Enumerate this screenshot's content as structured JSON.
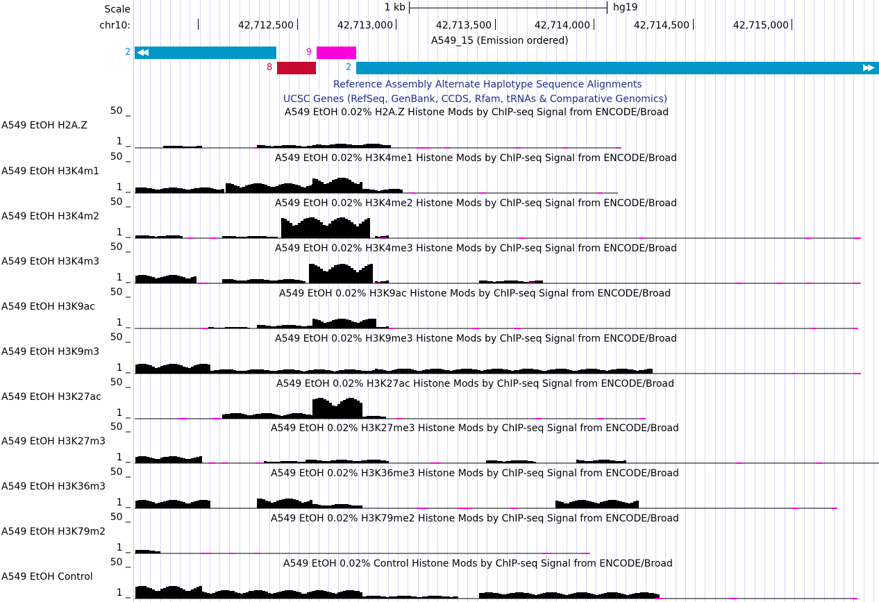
{
  "ruler": {
    "scale_label": "Scale",
    "chrom_label": "chr10:",
    "scalebar_label": "1 kb",
    "assembly": "hg19",
    "positions": [
      "42,712,500",
      "42,713,000",
      "42,713,500",
      "42,714,000",
      "42,714,500",
      "42,715,000"
    ]
  },
  "chromhmm": {
    "title": "A549_15 (Emission ordered)",
    "states": [
      "2",
      "9",
      "8",
      "2"
    ],
    "colors": {
      "state2": "#0096c8",
      "state9": "#ff00dc",
      "state8": "#c80a32"
    }
  },
  "collapsed_tracks": [
    "Reference Assembly Alternate Haplotype Sequence Alignments",
    "UCSC Genes (RefSeq, GenBank, CCDS, Rfam, tRNAs & Comparative Genomics)"
  ],
  "signal": {
    "axis_top": "50 _",
    "axis_bottom": "1 _",
    "tracks": [
      {
        "label": "A549 EtOH H2A.Z",
        "title": "A549 EtOH 0.02% H2A.Z Histone Mods by ChIP-seq Signal from ENCODE/Broad"
      },
      {
        "label": "A549 EtOH H3K4m1",
        "title": "A549 EtOH 0.02% H3K4me1 Histone Mods by ChIP-seq Signal from ENCODE/Broad"
      },
      {
        "label": "A549 EtOH H3K4m2",
        "title": "A549 EtOH 0.02% H3K4me2 Histone Mods by ChIP-seq Signal from ENCODE/Broad"
      },
      {
        "label": "A549 EtOH H3K4m3",
        "title": "A549 EtOH 0.02% H3K4me3 Histone Mods by ChIP-seq Signal from ENCODE/Broad"
      },
      {
        "label": "A549 EtOH H3K9ac",
        "title": "A549 EtOH 0.02% H3K9ac Histone Mods by ChIP-seq Signal from ENCODE/Broad"
      },
      {
        "label": "A549 EtOH H3K9m3",
        "title": "A549 EtOH 0.02% H3K9me3 Histone Mods by ChIP-seq Signal from ENCODE/Broad"
      },
      {
        "label": "A549 EtOH H3K27ac",
        "title": "A549 EtOH 0.02% H3K27ac Histone Mods by ChIP-seq Signal from ENCODE/Broad"
      },
      {
        "label": "A549 EtOH H3K27m3",
        "title": "A549 EtOH 0.02% H3K27me3 Histone Mods by ChIP-seq Signal from ENCODE/Broad"
      },
      {
        "label": "A549 EtOH H3K36m3",
        "title": "A549 EtOH 0.02% H3K36me3 Histone Mods by ChIP-seq Signal from ENCODE/Broad"
      },
      {
        "label": "A549 EtOH H3K79m2",
        "title": "A549 EtOH 0.02% H3K79me2 Histone Mods by ChIP-seq Signal from ENCODE/Broad"
      },
      {
        "label": "A549 EtOH Control",
        "title": "A549 EtOH 0.02% Control Histone Mods by ChIP-seq Signal from ENCODE/Broad"
      }
    ]
  },
  "colors": {
    "title_blue": "#1f2f8c",
    "gap_magenta": "#ff00dc",
    "grid": "#d8d8f2",
    "signal": "#000000"
  }
}
